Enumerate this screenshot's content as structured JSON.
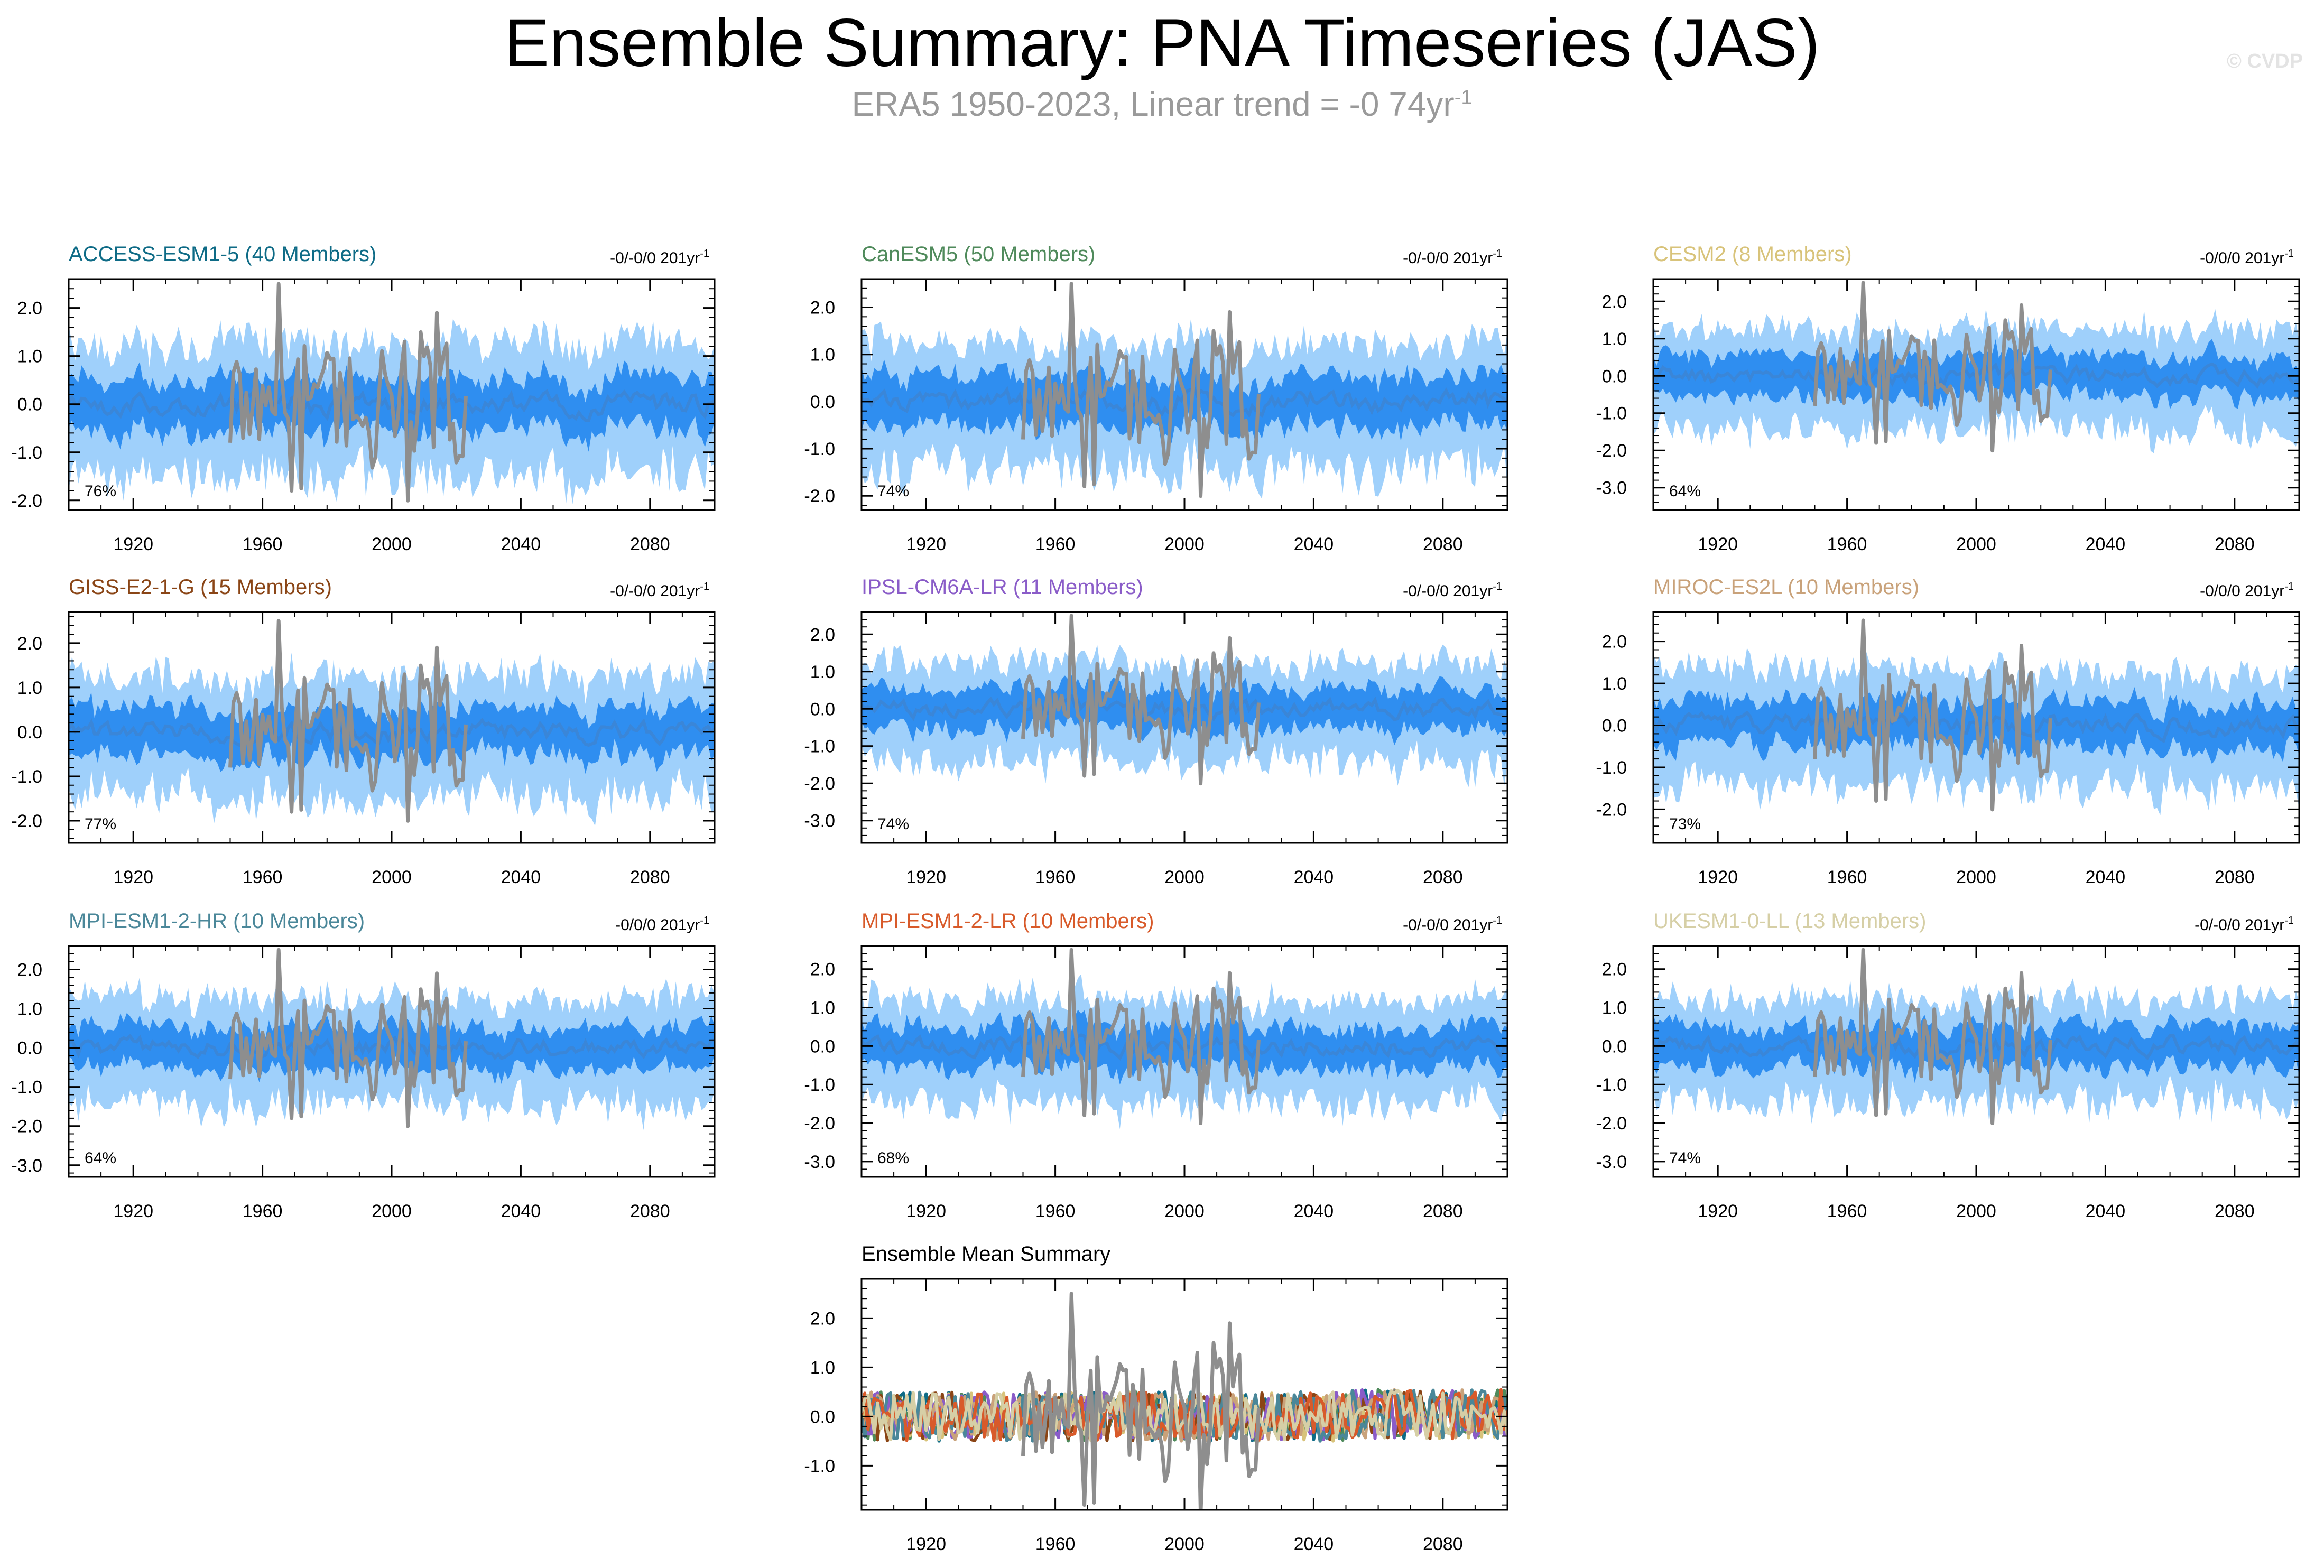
{
  "title": "Ensemble Summary: PNA Timeseries (JAS)",
  "subtitle": {
    "text": "ERA5 1950-2023, Linear trend = -0 74yr",
    "superscript": "-1"
  },
  "watermark": "© CVDP",
  "colors": {
    "band_outer": "#9fd0fb",
    "band_inner": "#2f8ef0",
    "ens_mean": "#3a86d8",
    "obs": "#8e8e8e",
    "frame": "#000000"
  },
  "chart_data": [
    {
      "type": "area",
      "title": "ACCESS-ESM1-5 (40 Members)",
      "title_color": "#0e6b86",
      "trend_label": "-0/-0/0 201yr",
      "trend_sup": "-1",
      "percent_label": "76%",
      "xlim": [
        1900,
        2100
      ],
      "ylim": [
        -2.2,
        2.6
      ],
      "yticks": [
        2.0,
        1.0,
        0.0,
        -1.0,
        -2.0
      ],
      "ytick_labels": [
        "2.0",
        "1.0",
        "0.0",
        "-1.0",
        "-2.0"
      ],
      "xticks": [
        1920,
        1960,
        2000,
        2040,
        2080
      ],
      "xtick_labels": [
        "1920",
        "1960",
        "2000",
        "2040",
        "2080"
      ],
      "series": [
        {
          "name": "ensemble range",
          "kind": "band"
        },
        {
          "name": "interquartile range",
          "kind": "band"
        },
        {
          "name": "ensemble mean",
          "kind": "line"
        },
        {
          "name": "ERA5",
          "kind": "line",
          "years": [
            1950,
            2023
          ]
        }
      ]
    },
    {
      "type": "area",
      "title": "CanESM5 (50 Members)",
      "title_color": "#4f8a5b",
      "trend_label": "-0/-0/0 201yr",
      "trend_sup": "-1",
      "percent_label": "74%",
      "xlim": [
        1900,
        2100
      ],
      "ylim": [
        -2.3,
        2.6
      ],
      "yticks": [
        2.0,
        1.0,
        0.0,
        -1.0,
        -2.0
      ],
      "ytick_labels": [
        "2.0",
        "1.0",
        "0.0",
        "-1.0",
        "-2.0"
      ],
      "xticks": [
        1920,
        1960,
        2000,
        2040,
        2080
      ],
      "xtick_labels": [
        "1920",
        "1960",
        "2000",
        "2040",
        "2080"
      ],
      "series": [
        {
          "name": "ensemble range",
          "kind": "band"
        },
        {
          "name": "interquartile range",
          "kind": "band"
        },
        {
          "name": "ensemble mean",
          "kind": "line"
        },
        {
          "name": "ERA5",
          "kind": "line",
          "years": [
            1950,
            2023
          ]
        }
      ]
    },
    {
      "type": "area",
      "title": "CESM2 (8 Members)",
      "title_color": "#d8c37a",
      "trend_label": "-0/0/0 201yr",
      "trend_sup": "-1",
      "percent_label": "64%",
      "xlim": [
        1900,
        2100
      ],
      "ylim": [
        -3.6,
        2.6
      ],
      "yticks": [
        2.0,
        1.0,
        0.0,
        -1.0,
        -2.0,
        -3.0
      ],
      "ytick_labels": [
        "2.0",
        "1.0",
        "0.0",
        "-1.0",
        "-2.0",
        "-3.0"
      ],
      "xticks": [
        1920,
        1960,
        2000,
        2040,
        2080
      ],
      "xtick_labels": [
        "1920",
        "1960",
        "2000",
        "2040",
        "2080"
      ],
      "series": [
        {
          "name": "ensemble range",
          "kind": "band"
        },
        {
          "name": "interquartile range",
          "kind": "band"
        },
        {
          "name": "ensemble mean",
          "kind": "line"
        },
        {
          "name": "ERA5",
          "kind": "line",
          "years": [
            1950,
            2023
          ]
        }
      ]
    },
    {
      "type": "area",
      "title": "GISS-E2-1-G (15 Members)",
      "title_color": "#8a4516",
      "trend_label": "-0/-0/0 201yr",
      "trend_sup": "-1",
      "percent_label": "77%",
      "xlim": [
        1900,
        2100
      ],
      "ylim": [
        -2.5,
        2.7
      ],
      "yticks": [
        2.0,
        1.0,
        0.0,
        -1.0,
        -2.0
      ],
      "ytick_labels": [
        "2.0",
        "1.0",
        "0.0",
        "-1.0",
        "-2.0"
      ],
      "xticks": [
        1920,
        1960,
        2000,
        2040,
        2080
      ],
      "xtick_labels": [
        "1920",
        "1960",
        "2000",
        "2040",
        "2080"
      ],
      "series": [
        {
          "name": "ensemble range",
          "kind": "band"
        },
        {
          "name": "interquartile range",
          "kind": "band"
        },
        {
          "name": "ensemble mean",
          "kind": "line"
        },
        {
          "name": "ERA5",
          "kind": "line",
          "years": [
            1950,
            2023
          ]
        }
      ]
    },
    {
      "type": "area",
      "title": "IPSL-CM6A-LR (11 Members)",
      "title_color": "#8a5cc8",
      "trend_label": "-0/-0/0 201yr",
      "trend_sup": "-1",
      "percent_label": "74%",
      "xlim": [
        1900,
        2100
      ],
      "ylim": [
        -3.6,
        2.6
      ],
      "yticks": [
        2.0,
        1.0,
        0.0,
        -1.0,
        -2.0,
        -3.0
      ],
      "ytick_labels": [
        "2.0",
        "1.0",
        "0.0",
        "-1.0",
        "-2.0",
        "-3.0"
      ],
      "xticks": [
        1920,
        1960,
        2000,
        2040,
        2080
      ],
      "xtick_labels": [
        "1920",
        "1960",
        "2000",
        "2040",
        "2080"
      ],
      "series": [
        {
          "name": "ensemble range",
          "kind": "band"
        },
        {
          "name": "interquartile range",
          "kind": "band"
        },
        {
          "name": "ensemble mean",
          "kind": "line"
        },
        {
          "name": "ERA5",
          "kind": "line",
          "years": [
            1950,
            2023
          ]
        }
      ]
    },
    {
      "type": "area",
      "title": "MIROC-ES2L (10 Members)",
      "title_color": "#c9a27a",
      "trend_label": "-0/0/0 201yr",
      "trend_sup": "-1",
      "percent_label": "73%",
      "xlim": [
        1900,
        2100
      ],
      "ylim": [
        -2.8,
        2.7
      ],
      "yticks": [
        2.0,
        1.0,
        0.0,
        -1.0,
        -2.0
      ],
      "ytick_labels": [
        "2.0",
        "1.0",
        "0.0",
        "-1.0",
        "-2.0"
      ],
      "xticks": [
        1920,
        1960,
        2000,
        2040,
        2080
      ],
      "xtick_labels": [
        "1920",
        "1960",
        "2000",
        "2040",
        "2080"
      ],
      "series": [
        {
          "name": "ensemble range",
          "kind": "band"
        },
        {
          "name": "interquartile range",
          "kind": "band"
        },
        {
          "name": "ensemble mean",
          "kind": "line"
        },
        {
          "name": "ERA5",
          "kind": "line",
          "years": [
            1950,
            2023
          ]
        }
      ]
    },
    {
      "type": "area",
      "title": "MPI-ESM1-2-HR (10 Members)",
      "title_color": "#4a8799",
      "trend_label": "-0/0/0 201yr",
      "trend_sup": "-1",
      "percent_label": "64%",
      "xlim": [
        1900,
        2100
      ],
      "ylim": [
        -3.3,
        2.6
      ],
      "yticks": [
        2.0,
        1.0,
        0.0,
        -1.0,
        -2.0,
        -3.0
      ],
      "ytick_labels": [
        "2.0",
        "1.0",
        "0.0",
        "-1.0",
        "-2.0",
        "-3.0"
      ],
      "xticks": [
        1920,
        1960,
        2000,
        2040,
        2080
      ],
      "xtick_labels": [
        "1920",
        "1960",
        "2000",
        "2040",
        "2080"
      ],
      "series": [
        {
          "name": "ensemble range",
          "kind": "band"
        },
        {
          "name": "interquartile range",
          "kind": "band"
        },
        {
          "name": "ensemble mean",
          "kind": "line"
        },
        {
          "name": "ERA5",
          "kind": "line",
          "years": [
            1950,
            2023
          ]
        }
      ]
    },
    {
      "type": "area",
      "title": "MPI-ESM1-2-LR (10 Members)",
      "title_color": "#d85a2a",
      "trend_label": "-0/-0/0 201yr",
      "trend_sup": "-1",
      "percent_label": "68%",
      "xlim": [
        1900,
        2100
      ],
      "ylim": [
        -3.4,
        2.6
      ],
      "yticks": [
        2.0,
        1.0,
        0.0,
        -1.0,
        -2.0,
        -3.0
      ],
      "ytick_labels": [
        "2.0",
        "1.0",
        "0.0",
        "-1.0",
        "-2.0",
        "-3.0"
      ],
      "xticks": [
        1920,
        1960,
        2000,
        2040,
        2080
      ],
      "xtick_labels": [
        "1920",
        "1960",
        "2000",
        "2040",
        "2080"
      ],
      "series": [
        {
          "name": "ensemble range",
          "kind": "band"
        },
        {
          "name": "interquartile range",
          "kind": "band"
        },
        {
          "name": "ensemble mean",
          "kind": "line"
        },
        {
          "name": "ERA5",
          "kind": "line",
          "years": [
            1950,
            2023
          ]
        }
      ]
    },
    {
      "type": "area",
      "title": "UKESM1-0-LL (13 Members)",
      "title_color": "#d6cfa6",
      "trend_label": "-0/-0/0 201yr",
      "trend_sup": "-1",
      "percent_label": "74%",
      "xlim": [
        1900,
        2100
      ],
      "ylim": [
        -3.4,
        2.6
      ],
      "yticks": [
        2.0,
        1.0,
        0.0,
        -1.0,
        -2.0,
        -3.0
      ],
      "ytick_labels": [
        "2.0",
        "1.0",
        "0.0",
        "-1.0",
        "-2.0",
        "-3.0"
      ],
      "xticks": [
        1920,
        1960,
        2000,
        2040,
        2080
      ],
      "xtick_labels": [
        "1920",
        "1960",
        "2000",
        "2040",
        "2080"
      ],
      "series": [
        {
          "name": "ensemble range",
          "kind": "band"
        },
        {
          "name": "interquartile range",
          "kind": "band"
        },
        {
          "name": "ensemble mean",
          "kind": "line"
        },
        {
          "name": "ERA5",
          "kind": "line",
          "years": [
            1950,
            2023
          ]
        }
      ]
    },
    {
      "type": "line",
      "title": "Ensemble Mean Summary",
      "title_color": "#000000",
      "xlim": [
        1900,
        2100
      ],
      "ylim": [
        -1.9,
        2.8
      ],
      "yticks": [
        2.0,
        1.0,
        0.0,
        -1.0
      ],
      "ytick_labels": [
        "2.0",
        "1.0",
        "0.0",
        "-1.0"
      ],
      "xticks": [
        1920,
        1960,
        2000,
        2040,
        2080
      ],
      "xtick_labels": [
        "1920",
        "1960",
        "2000",
        "2040",
        "2080"
      ],
      "series": [
        {
          "name": "ACCESS-ESM1-5",
          "color": "#0e6b86"
        },
        {
          "name": "CanESM5",
          "color": "#4f8a5b"
        },
        {
          "name": "CESM2",
          "color": "#d8c37a"
        },
        {
          "name": "GISS-E2-1-G",
          "color": "#8a4516"
        },
        {
          "name": "IPSL-CM6A-LR",
          "color": "#8a5cc8"
        },
        {
          "name": "MIROC-ES2L",
          "color": "#c9a27a"
        },
        {
          "name": "MPI-ESM1-2-HR",
          "color": "#4a8799"
        },
        {
          "name": "MPI-ESM1-2-LR",
          "color": "#d85a2a"
        },
        {
          "name": "UKESM1-0-LL",
          "color": "#d6cfa6"
        },
        {
          "name": "ERA5",
          "color": "#8e8e8e",
          "years": [
            1950,
            2023
          ]
        }
      ]
    }
  ]
}
